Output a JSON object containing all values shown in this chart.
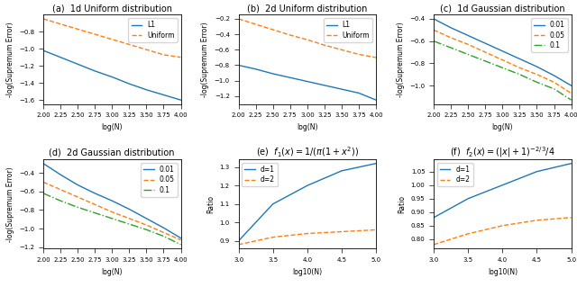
{
  "fig_width": 6.4,
  "fig_height": 3.29,
  "dpi": 100,
  "colors": {
    "blue": "#1f77b4",
    "orange": "#ff7f0e",
    "green": "#2ca02c"
  },
  "ab_x": [
    2.0,
    2.25,
    2.5,
    2.75,
    3.0,
    3.25,
    3.5,
    3.75,
    4.0
  ],
  "a_L1": [
    -1.02,
    -1.1,
    -1.18,
    -1.26,
    -1.33,
    -1.41,
    -1.48,
    -1.54,
    -1.6
  ],
  "a_Unif": [
    -0.65,
    -0.71,
    -0.77,
    -0.83,
    -0.89,
    -0.95,
    -1.01,
    -1.07,
    -1.1
  ],
  "b_L1": [
    -0.8,
    -0.85,
    -0.91,
    -0.96,
    -1.01,
    -1.06,
    -1.11,
    -1.16,
    -1.25
  ],
  "b_Unif": [
    -0.2,
    -0.27,
    -0.34,
    -0.41,
    -0.47,
    -0.54,
    -0.6,
    -0.66,
    -0.7
  ],
  "c_001": [
    -0.4,
    -0.48,
    -0.55,
    -0.62,
    -0.69,
    -0.76,
    -0.83,
    -0.91,
    -1.0
  ],
  "c_005": [
    -0.5,
    -0.57,
    -0.63,
    -0.7,
    -0.77,
    -0.84,
    -0.9,
    -0.97,
    -1.07
  ],
  "c_01": [
    -0.6,
    -0.66,
    -0.72,
    -0.78,
    -0.84,
    -0.9,
    -0.97,
    -1.03,
    -1.13
  ],
  "d_001": [
    -0.3,
    -0.42,
    -0.53,
    -0.62,
    -0.7,
    -0.79,
    -0.89,
    -0.99,
    -1.1
  ],
  "d_005": [
    -0.5,
    -0.58,
    -0.66,
    -0.74,
    -0.82,
    -0.89,
    -0.96,
    -1.04,
    -1.12
  ],
  "d_01": [
    -0.62,
    -0.7,
    -0.77,
    -0.83,
    -0.89,
    -0.95,
    -1.01,
    -1.08,
    -1.17
  ],
  "ef_x": [
    3.0,
    3.5,
    4.0,
    4.5,
    5.0
  ],
  "e_d1": [
    0.9,
    1.1,
    1.2,
    1.28,
    1.32
  ],
  "e_d2": [
    0.88,
    0.92,
    0.94,
    0.95,
    0.96
  ],
  "f_d1": [
    0.88,
    0.95,
    1.0,
    1.05,
    1.08
  ],
  "f_d2": [
    0.78,
    0.82,
    0.85,
    0.87,
    0.88
  ]
}
